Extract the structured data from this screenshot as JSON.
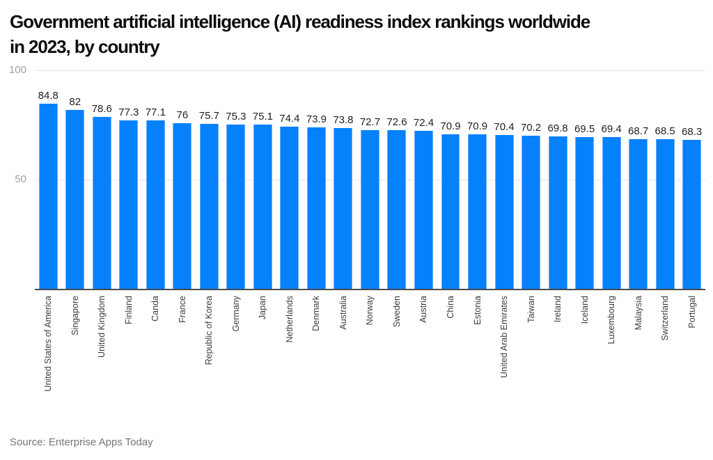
{
  "title": "Government artificial intelligence (AI) readiness index rankings worldwide in 2023, by country",
  "title_lines": [
    "Government artificial intelligence (AI) readiness index rankings worldwide",
    "in 2023, by country"
  ],
  "source": "Source: Enterprise Apps Today",
  "colors": {
    "background": "#ffffff",
    "bar": "#0681fc",
    "bar_edge": "#6fadf7",
    "grid": "#e4e4e4",
    "axis_line": "#4a4a4a",
    "tick_label": "#9e9e9e",
    "value_label": "#1f1f1f",
    "category_label": "#3c3c3c",
    "title": "#0d0d0d",
    "source": "#757575"
  },
  "chart_data": {
    "type": "bar",
    "title": "Government artificial intelligence (AI) readiness index rankings worldwide in 2023, by country",
    "categories": [
      "United States of America",
      "Singapore",
      "United Kingdom",
      "Finland",
      "Canda",
      "France",
      "Republic of Korea",
      "Germany",
      "Japan",
      "Netherlands",
      "Denmark",
      "Australia",
      "Norway",
      "Sweden",
      "Austria",
      "China",
      "Estonia",
      "United Arab Emirates",
      "Taiwan",
      "Ireland",
      "Iceland",
      "Luxembourg",
      "Malaysia",
      "Switzerland",
      "Portugal"
    ],
    "values": [
      84.8,
      82,
      78.6,
      77.3,
      77.1,
      76,
      75.7,
      75.3,
      75.1,
      74.4,
      73.9,
      73.8,
      72.7,
      72.6,
      72.4,
      70.9,
      70.9,
      70.4,
      70.2,
      69.8,
      69.5,
      69.4,
      68.7,
      68.5,
      68.3
    ],
    "xlabel": "",
    "ylabel": "",
    "ylim": [
      0,
      100
    ],
    "yticks": [
      50,
      100
    ],
    "grid": true,
    "legend": false,
    "bar_value_labels": true,
    "x_tick_rotation": 90
  }
}
